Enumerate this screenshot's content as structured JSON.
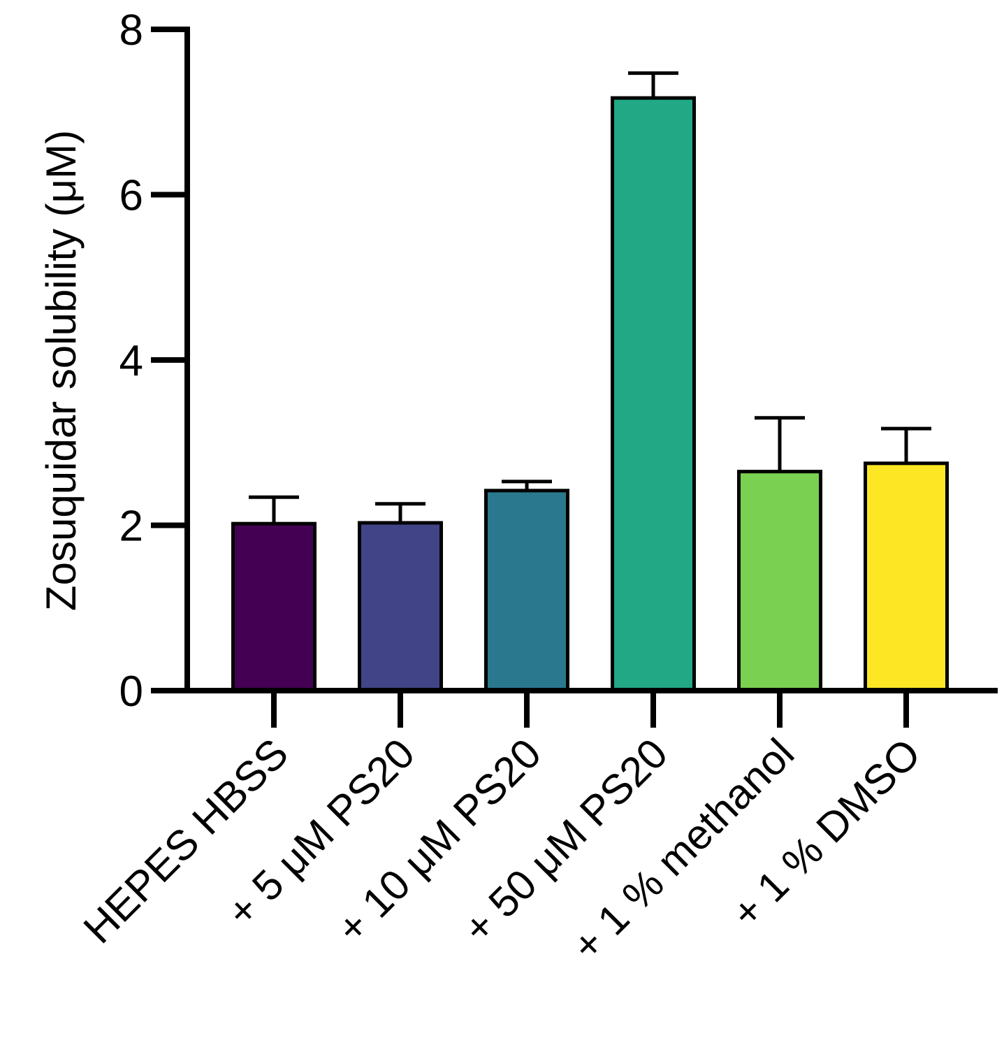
{
  "chart_data": {
    "type": "bar",
    "title": "",
    "xlabel": "",
    "ylabel": "Zosuquidar solubility (μM)",
    "ylim": [
      0,
      8
    ],
    "yticks": [
      "0",
      "2",
      "4",
      "6",
      "8"
    ],
    "grid": false,
    "legend": "none",
    "categories": [
      "HEPES HBSS",
      "+ 5 μM PS20",
      "+ 10 μM PS20",
      "+ 50 μM PS20",
      "+ 1 % methanol",
      "+ 1 % DMSO"
    ],
    "series": [
      {
        "name": "Zosuquidar solubility",
        "values": [
          2.02,
          2.03,
          2.42,
          7.17,
          2.65,
          2.75
        ],
        "error": [
          0.32,
          0.23,
          0.11,
          0.3,
          0.65,
          0.42
        ],
        "colors": [
          "#440154",
          "#414487",
          "#2a788e",
          "#22a884",
          "#7ad151",
          "#fde725"
        ]
      }
    ]
  }
}
